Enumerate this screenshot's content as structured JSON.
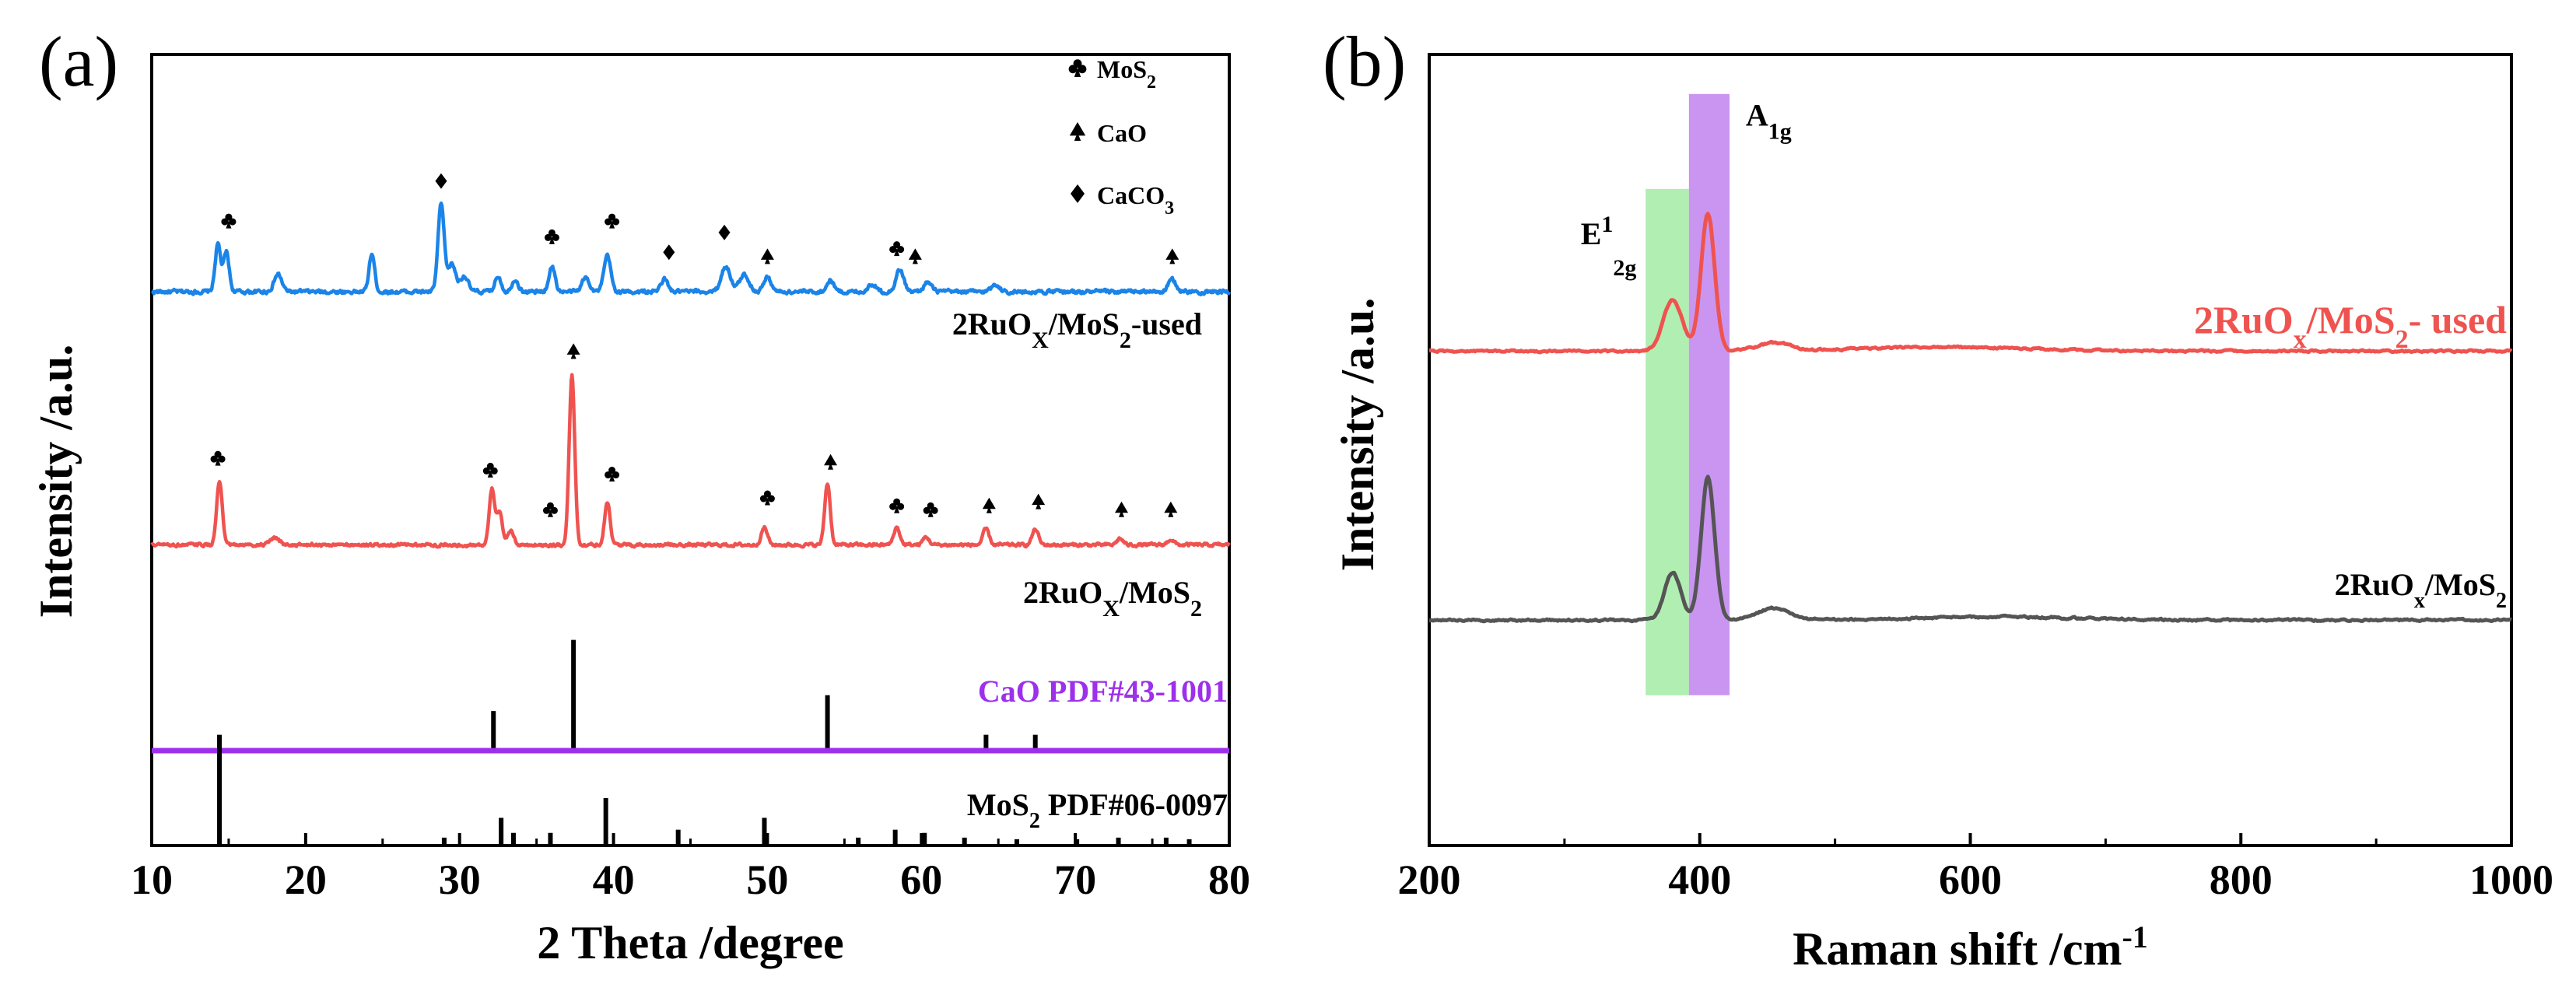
{
  "colors": {
    "axis": "#000000",
    "blue": "#1a84e8",
    "red": "#ef5350",
    "gray": "#555555",
    "purple": "#9d30ea",
    "green_band": "#a8ecaa",
    "purple_band": "#c389ee",
    "label_red": "#ef5350",
    "label_purple": "#9d30ea"
  },
  "chart_data": [
    {
      "panel_label": "(a)",
      "type": "line",
      "title": "",
      "xlabel": "2 Theta /degree",
      "ylabel": "Intensity /a.u.",
      "xlim": [
        10,
        80
      ],
      "ylim": [
        0,
        100
      ],
      "xticks": [
        10,
        20,
        30,
        40,
        50,
        60,
        70,
        80
      ],
      "yticks_shown": false,
      "grid": false,
      "legend": {
        "position": "top-right",
        "entries": [
          {
            "symbol": "club",
            "name": "MoS",
            "sub": "2"
          },
          {
            "symbol": "spade",
            "name": "CaO",
            "sub": ""
          },
          {
            "symbol": "diamond",
            "name": "CaCO",
            "sub": "3"
          }
        ]
      },
      "series": [
        {
          "name": "2RuOx/MoS2-used",
          "label_parts": [
            "2RuO",
            "X",
            "/MoS",
            "2",
            "-used"
          ],
          "color_key": "blue",
          "baseline": 70,
          "noise": 0.45,
          "peaks": [
            {
              "x": 14.3,
              "h": 6.0,
              "w": 0.18
            },
            {
              "x": 14.85,
              "h": 5.0,
              "w": 0.18
            },
            {
              "x": 18.2,
              "h": 2.2,
              "w": 0.25
            },
            {
              "x": 24.3,
              "h": 4.8,
              "w": 0.18
            },
            {
              "x": 28.8,
              "h": 11.0,
              "w": 0.2
            },
            {
              "x": 29.5,
              "h": 3.5,
              "w": 0.25
            },
            {
              "x": 30.3,
              "h": 2.0,
              "w": 0.25
            },
            {
              "x": 32.5,
              "h": 2.0,
              "w": 0.2
            },
            {
              "x": 33.6,
              "h": 1.6,
              "w": 0.2
            },
            {
              "x": 36.0,
              "h": 3.2,
              "w": 0.2
            },
            {
              "x": 38.2,
              "h": 1.8,
              "w": 0.25
            },
            {
              "x": 39.6,
              "h": 4.5,
              "w": 0.22
            },
            {
              "x": 43.3,
              "h": 1.6,
              "w": 0.22
            },
            {
              "x": 47.3,
              "h": 3.2,
              "w": 0.3
            },
            {
              "x": 48.5,
              "h": 2.2,
              "w": 0.3
            },
            {
              "x": 50.0,
              "h": 1.8,
              "w": 0.25
            },
            {
              "x": 54.1,
              "h": 1.5,
              "w": 0.22
            },
            {
              "x": 56.8,
              "h": 1.0,
              "w": 0.25
            },
            {
              "x": 58.6,
              "h": 2.8,
              "w": 0.25
            },
            {
              "x": 60.4,
              "h": 1.2,
              "w": 0.25
            },
            {
              "x": 64.8,
              "h": 1.0,
              "w": 0.25
            },
            {
              "x": 76.3,
              "h": 1.5,
              "w": 0.25
            }
          ],
          "markers": [
            {
              "x": 15.0,
              "y": 79,
              "symbol": "club"
            },
            {
              "x": 28.8,
              "y": 84,
              "symbol": "diamond"
            },
            {
              "x": 36.0,
              "y": 77,
              "symbol": "club"
            },
            {
              "x": 39.9,
              "y": 79,
              "symbol": "club"
            },
            {
              "x": 43.6,
              "y": 75,
              "symbol": "diamond"
            },
            {
              "x": 47.2,
              "y": 77.5,
              "symbol": "diamond"
            },
            {
              "x": 50.0,
              "y": 74.5,
              "symbol": "spade"
            },
            {
              "x": 58.4,
              "y": 75.5,
              "symbol": "club"
            },
            {
              "x": 59.6,
              "y": 74.5,
              "symbol": "spade"
            },
            {
              "x": 76.3,
              "y": 74.5,
              "symbol": "spade"
            }
          ]
        },
        {
          "name": "2RuOx/MoS2",
          "label_parts": [
            "2RuO",
            "X",
            "/MoS",
            "2",
            ""
          ],
          "color_key": "red",
          "baseline": 38,
          "noise": 0.35,
          "peaks": [
            {
              "x": 14.4,
              "h": 8.0,
              "w": 0.18
            },
            {
              "x": 18.0,
              "h": 0.8,
              "w": 0.3
            },
            {
              "x": 32.1,
              "h": 7.0,
              "w": 0.18
            },
            {
              "x": 32.6,
              "h": 4.0,
              "w": 0.18
            },
            {
              "x": 33.3,
              "h": 1.8,
              "w": 0.2
            },
            {
              "x": 37.3,
              "h": 21.5,
              "w": 0.18
            },
            {
              "x": 39.6,
              "h": 5.5,
              "w": 0.18
            },
            {
              "x": 49.8,
              "h": 2.2,
              "w": 0.2
            },
            {
              "x": 53.9,
              "h": 7.8,
              "w": 0.18
            },
            {
              "x": 58.4,
              "h": 2.2,
              "w": 0.2
            },
            {
              "x": 60.3,
              "h": 1.0,
              "w": 0.2
            },
            {
              "x": 64.2,
              "h": 2.0,
              "w": 0.2
            },
            {
              "x": 67.4,
              "h": 2.0,
              "w": 0.2
            },
            {
              "x": 72.9,
              "h": 0.8,
              "w": 0.2
            },
            {
              "x": 76.2,
              "h": 0.7,
              "w": 0.2
            }
          ],
          "markers": [
            {
              "x": 14.3,
              "y": 49,
              "symbol": "club"
            },
            {
              "x": 32.0,
              "y": 47.5,
              "symbol": "club"
            },
            {
              "x": 35.9,
              "y": 42.5,
              "symbol": "club"
            },
            {
              "x": 37.4,
              "y": 62.5,
              "symbol": "spade"
            },
            {
              "x": 39.9,
              "y": 47,
              "symbol": "club"
            },
            {
              "x": 50.0,
              "y": 44,
              "symbol": "club"
            },
            {
              "x": 54.1,
              "y": 48.5,
              "symbol": "spade"
            },
            {
              "x": 58.4,
              "y": 43,
              "symbol": "club"
            },
            {
              "x": 60.6,
              "y": 42.5,
              "symbol": "club"
            },
            {
              "x": 64.4,
              "y": 43,
              "symbol": "spade"
            },
            {
              "x": 67.6,
              "y": 43.5,
              "symbol": "spade"
            },
            {
              "x": 73.0,
              "y": 42.5,
              "symbol": "spade"
            },
            {
              "x": 76.2,
              "y": 42.5,
              "symbol": "spade"
            }
          ]
        }
      ],
      "reference_lines": [
        {
          "name": "CaO PDF#43-1001",
          "label": "CaO  PDF#43-1001",
          "baseline": 12,
          "color_key": "axis",
          "baseline_color_key": "purple",
          "sticks": [
            {
              "x": 32.2,
              "h": 5
            },
            {
              "x": 37.4,
              "h": 14
            },
            {
              "x": 53.9,
              "h": 7
            },
            {
              "x": 64.2,
              "h": 2
            },
            {
              "x": 67.4,
              "h": 2
            }
          ]
        },
        {
          "name": "MoS2 PDF#06-0097",
          "label_parts": [
            "MoS",
            "2",
            "  PDF#06-0097"
          ],
          "baseline": 0,
          "color_key": "axis",
          "sticks": [
            {
              "x": 14.4,
              "h": 14
            },
            {
              "x": 29.0,
              "h": 1.0
            },
            {
              "x": 32.7,
              "h": 3.5
            },
            {
              "x": 33.5,
              "h": 1.6
            },
            {
              "x": 35.9,
              "h": 1.6
            },
            {
              "x": 39.5,
              "h": 6.0
            },
            {
              "x": 44.2,
              "h": 2.0
            },
            {
              "x": 49.8,
              "h": 3.5
            },
            {
              "x": 55.9,
              "h": 1.0
            },
            {
              "x": 58.3,
              "h": 2.0
            },
            {
              "x": 60.2,
              "h": 1.6
            },
            {
              "x": 62.8,
              "h": 1.0
            },
            {
              "x": 66.2,
              "h": 0.8
            },
            {
              "x": 70.1,
              "h": 0.8
            },
            {
              "x": 72.8,
              "h": 1.0
            },
            {
              "x": 75.9,
              "h": 1.0
            },
            {
              "x": 77.4,
              "h": 0.8
            }
          ]
        }
      ]
    },
    {
      "panel_label": "(b)",
      "type": "line",
      "title": "",
      "xlabel_parts": [
        "Raman shift /cm",
        "-1"
      ],
      "ylabel": "Intensity /a.u.",
      "xlim": [
        200,
        1000
      ],
      "ylim": [
        0,
        100
      ],
      "xticks": [
        200,
        400,
        600,
        800,
        1000
      ],
      "yticks_shown": false,
      "grid": false,
      "bands": [
        {
          "name": "E12g band",
          "x_from": 360,
          "x_to": 392,
          "y_from": 19,
          "y_to": 83,
          "color_key": "green_band"
        },
        {
          "name": "A1g band",
          "x_from": 392,
          "x_to": 422,
          "y_from": 19,
          "y_to": 95,
          "color_key": "purple_band"
        }
      ],
      "annotations": [
        {
          "name": "E12g",
          "main": "E",
          "sup": "1",
          "sub": "2g",
          "x": 312,
          "y": 76
        },
        {
          "name": "A1g",
          "main": "A",
          "sub": "1g",
          "x": 434,
          "y": 91
        }
      ],
      "series": [
        {
          "name": "2RuOx/MoS2- used",
          "label_parts": [
            "2RuO",
            "x",
            "/MoS",
            "2",
            "- used"
          ],
          "label_color_key": "label_red",
          "color_key": "red",
          "baseline": 62.5,
          "noise": 0.22,
          "peaks": [
            {
              "x": 380,
              "h": 6.5,
              "w": 7
            },
            {
              "x": 406,
              "h": 17.5,
              "w": 5
            },
            {
              "x": 455,
              "h": 1.0,
              "w": 12
            },
            {
              "x": 580,
              "h": 0.5,
              "w": 60
            }
          ]
        },
        {
          "name": "2RuOx/MoS2",
          "label_parts": [
            "2RuO",
            "x",
            "/MoS",
            "2",
            ""
          ],
          "label_color_key": "axis",
          "color_key": "gray",
          "baseline": 28.5,
          "noise": 0.22,
          "peaks": [
            {
              "x": 380,
              "h": 6.0,
              "w": 6
            },
            {
              "x": 406,
              "h": 18.0,
              "w": 5
            },
            {
              "x": 455,
              "h": 1.5,
              "w": 12
            },
            {
              "x": 620,
              "h": 0.4,
              "w": 60
            }
          ]
        }
      ]
    }
  ]
}
